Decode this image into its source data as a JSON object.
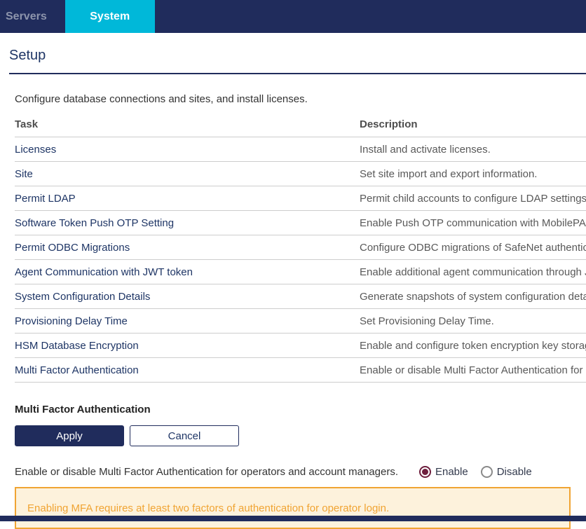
{
  "tabs": {
    "servers": "Servers",
    "system": "System"
  },
  "page": {
    "title": "Setup",
    "intro": "Configure database connections and sites, and install licenses."
  },
  "table": {
    "headers": {
      "task": "Task",
      "description": "Description"
    },
    "rows": [
      {
        "task": "Licenses",
        "description": "Install and activate licenses."
      },
      {
        "task": "Site",
        "description": "Set site import and export information."
      },
      {
        "task": "Permit LDAP",
        "description": "Permit child accounts to configure LDAP settings."
      },
      {
        "task": "Software Token Push OTP Setting",
        "description": "Enable Push OTP communication with MobilePASS users."
      },
      {
        "task": "Permit ODBC Migrations",
        "description": "Configure ODBC migrations of SafeNet authentication servers."
      },
      {
        "task": "Agent Communication with JWT token",
        "description": "Enable additional agent communication through JWT token."
      },
      {
        "task": "System Configuration Details",
        "description": "Generate snapshots of system configuration details."
      },
      {
        "task": "Provisioning Delay Time",
        "description": "Set Provisioning Delay Time."
      },
      {
        "task": "HSM Database Encryption",
        "description": "Enable and configure token encryption key storage on HSM."
      },
      {
        "task": "Multi Factor Authentication",
        "description": "Enable or disable Multi Factor Authentication for operators and account managers."
      }
    ]
  },
  "mfa": {
    "heading": "Multi Factor Authentication",
    "apply_label": "Apply",
    "cancel_label": "Cancel",
    "radio_prompt": "Enable or disable Multi Factor Authentication for operators and account managers.",
    "enable_label": "Enable",
    "disable_label": "Disable",
    "selected_option": "Enable",
    "warning": "Enabling MFA requires at least two factors of authentication for operator login."
  },
  "colors": {
    "navy": "#202c5c",
    "tab_active_cyan": "#00b8d9",
    "tab_inactive_text": "#8d95ac",
    "link_navy": "#1e3565",
    "description_gray": "#595959",
    "separator_gray": "#cdcdcd",
    "warning_orange": "#f0a433",
    "warning_bg": "#fdf2dc",
    "radio_selected_maroon": "#6e1f3e"
  }
}
